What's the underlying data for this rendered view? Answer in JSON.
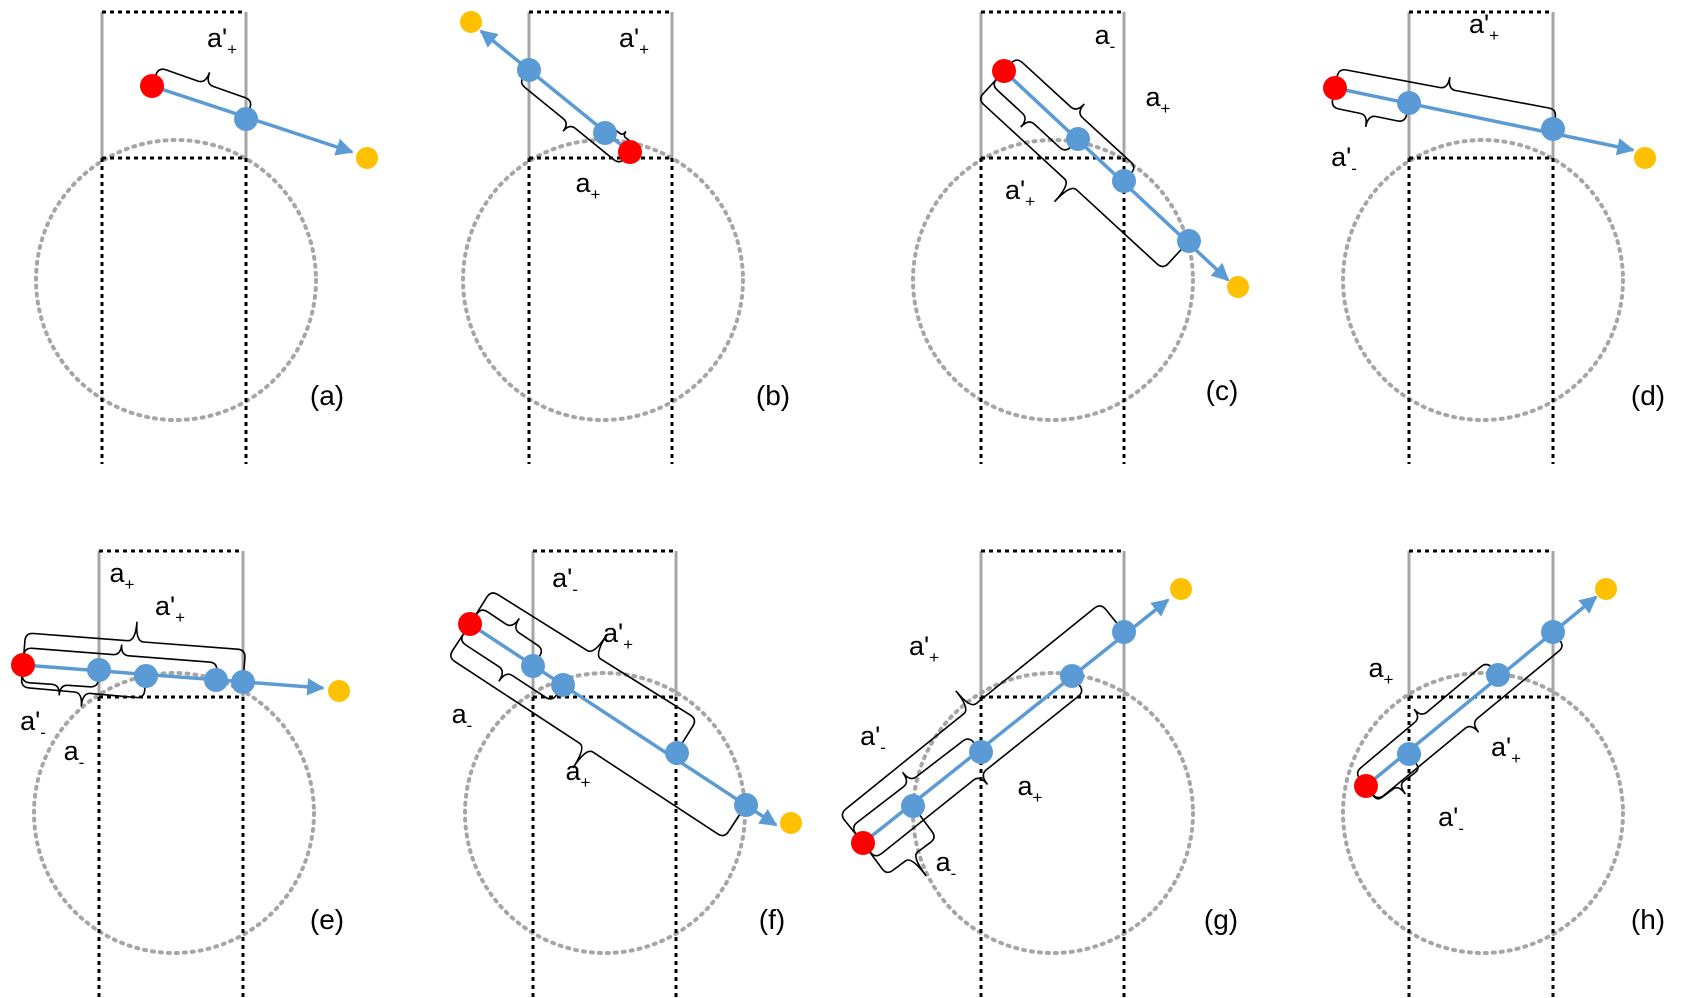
{
  "colors": {
    "ray": "#5b9bd5",
    "start_point": "#ff0000",
    "intersection_point": "#5b9bd5",
    "end_point": "#ffc000",
    "wall": "#a6a6a6",
    "dotted_line": "#000000",
    "circle": "#a6a6a6"
  },
  "panels": [
    {
      "caption": "(a)",
      "labels": [
        {
          "base": "a'",
          "sub": "+"
        }
      ]
    },
    {
      "caption": "(b)",
      "labels": [
        {
          "base": "a'",
          "sub": "+"
        },
        {
          "base": "a",
          "sub": "+"
        }
      ]
    },
    {
      "caption": "(c)",
      "labels": [
        {
          "base": "a",
          "sub": "-"
        },
        {
          "base": "a",
          "sub": "+"
        },
        {
          "base": "a'",
          "sub": "+"
        }
      ]
    },
    {
      "caption": "(d)",
      "labels": [
        {
          "base": "a'",
          "sub": "+"
        },
        {
          "base": "a'",
          "sub": "-"
        }
      ]
    },
    {
      "caption": "(e)",
      "labels": [
        {
          "base": "a",
          "sub": "+"
        },
        {
          "base": "a'",
          "sub": "+"
        },
        {
          "base": "a'",
          "sub": "-"
        },
        {
          "base": "a",
          "sub": "-"
        }
      ]
    },
    {
      "caption": "(f)",
      "labels": [
        {
          "base": "a'",
          "sub": "-"
        },
        {
          "base": "a'",
          "sub": "+"
        },
        {
          "base": "a",
          "sub": "-"
        },
        {
          "base": "a",
          "sub": "+"
        }
      ]
    },
    {
      "caption": "(g)",
      "labels": [
        {
          "base": "a'",
          "sub": "+"
        },
        {
          "base": "a'",
          "sub": "-"
        },
        {
          "base": "a",
          "sub": "+"
        },
        {
          "base": "a",
          "sub": "-"
        }
      ]
    },
    {
      "caption": "(h)",
      "labels": [
        {
          "base": "a",
          "sub": "+"
        },
        {
          "base": "a'",
          "sub": "+"
        },
        {
          "base": "a'",
          "sub": "-"
        }
      ]
    }
  ]
}
